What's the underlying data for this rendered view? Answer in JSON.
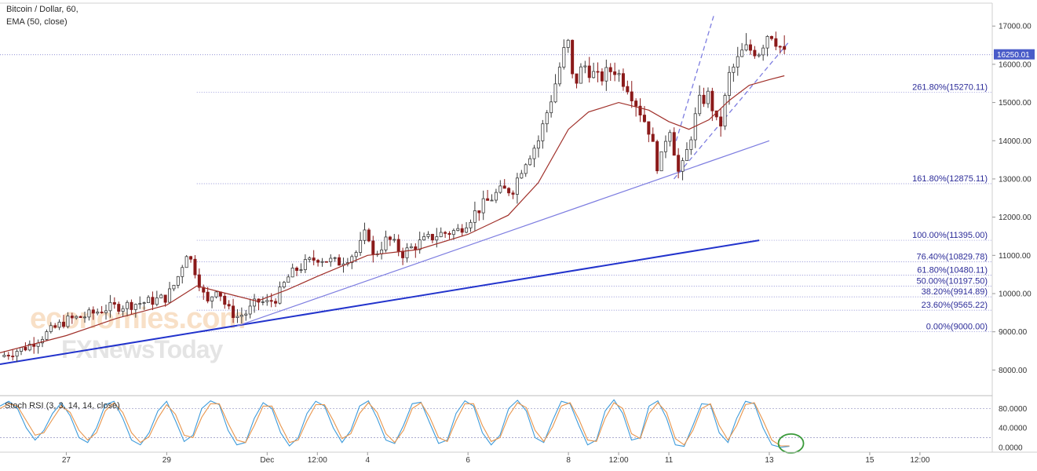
{
  "legend": {
    "symbol": "Bitcoin / Dollar, 60,",
    "ema": "EMA (50, close)",
    "stoch": "Stoch RSI (3, 3, 14, 14, close)"
  },
  "watermark": {
    "line1": "economies.com",
    "line2": "FXNewsToday"
  },
  "colors": {
    "up": "#3b3b3b",
    "down": "#8b1a1a",
    "ema": "#a0302a",
    "trend": "#2233cc",
    "trend_light": "#7d7de0",
    "stoch_k": "#3d9bdb",
    "stoch_d": "#e8954c",
    "fib": "#6e6ec8",
    "last_price_bg": "#4a5cc8",
    "circle": "#3a9a3a"
  },
  "chart_data": [
    {
      "type": "candlestick",
      "title": "Bitcoin / Dollar, 60,",
      "indicator": "EMA (50, close)",
      "price_axis": [
        "17000.00",
        "16000.00",
        "15000.00",
        "14000.00",
        "13000.00",
        "12000.00",
        "11000.00",
        "10000.00",
        "9000.00",
        "8000.00"
      ],
      "price_ticks": [
        17000,
        16000,
        15000,
        14000,
        13000,
        12000,
        11000,
        10000,
        9000,
        8000
      ],
      "ylim": [
        7350,
        17600
      ],
      "time_axis": [
        "27",
        "29",
        "Dec",
        "12:00",
        "4",
        "6",
        "8",
        "12:00",
        "11",
        "13",
        "15",
        "12:00"
      ],
      "time_positions": [
        0.0,
        1.0,
        2.0,
        2.5,
        3.0,
        4.0,
        5.0,
        5.5,
        6.0,
        7.0,
        8.0,
        8.5
      ],
      "xlim": [
        -0.66,
        9.22
      ],
      "last_price": "16250.01",
      "last_price_value": 16250.01,
      "close_path": [
        [
          -0.66,
          8350
        ],
        [
          -0.4,
          8600
        ],
        [
          -0.2,
          8950
        ],
        [
          0.0,
          9300
        ],
        [
          0.2,
          9420
        ],
        [
          0.4,
          9620
        ],
        [
          0.6,
          9700
        ],
        [
          0.8,
          9780
        ],
        [
          1.0,
          9900
        ],
        [
          1.1,
          10350
        ],
        [
          1.2,
          11100
        ],
        [
          1.3,
          10500
        ],
        [
          1.4,
          9700
        ],
        [
          1.5,
          10200
        ],
        [
          1.6,
          9600
        ],
        [
          1.7,
          9400
        ],
        [
          1.8,
          9500
        ],
        [
          1.9,
          9800
        ],
        [
          2.0,
          9750
        ],
        [
          2.1,
          9900
        ],
        [
          2.2,
          10400
        ],
        [
          2.3,
          10650
        ],
        [
          2.5,
          10950
        ],
        [
          2.7,
          10800
        ],
        [
          2.9,
          11100
        ],
        [
          3.0,
          11700
        ],
        [
          3.05,
          10950
        ],
        [
          3.2,
          11450
        ],
        [
          3.35,
          11050
        ],
        [
          3.5,
          11300
        ],
        [
          3.7,
          11550
        ],
        [
          3.9,
          11650
        ],
        [
          4.1,
          12200
        ],
        [
          4.3,
          12650
        ],
        [
          4.45,
          12750
        ],
        [
          4.55,
          13400
        ],
        [
          4.7,
          14000
        ],
        [
          4.85,
          15300
        ],
        [
          4.95,
          16300
        ],
        [
          5.0,
          16550
        ],
        [
          5.05,
          15400
        ],
        [
          5.15,
          16000
        ],
        [
          5.3,
          15600
        ],
        [
          5.45,
          15900
        ],
        [
          5.6,
          15400
        ],
        [
          5.8,
          14300
        ],
        [
          5.9,
          13200
        ],
        [
          6.0,
          14500
        ],
        [
          6.1,
          13100
        ],
        [
          6.15,
          13400
        ],
        [
          6.3,
          15000
        ],
        [
          6.4,
          15200
        ],
        [
          6.5,
          14200
        ],
        [
          6.6,
          15700
        ],
        [
          6.75,
          16400
        ],
        [
          6.9,
          16350
        ],
        [
          7.0,
          16900
        ],
        [
          7.1,
          16500
        ],
        [
          7.15,
          16250
        ]
      ],
      "ema_path": [
        [
          -0.66,
          8450
        ],
        [
          0.0,
          8900
        ],
        [
          0.5,
          9350
        ],
        [
          1.0,
          9700
        ],
        [
          1.3,
          10200
        ],
        [
          1.6,
          10000
        ],
        [
          1.9,
          9800
        ],
        [
          2.2,
          10100
        ],
        [
          2.5,
          10450
        ],
        [
          3.0,
          11000
        ],
        [
          3.5,
          11150
        ],
        [
          4.0,
          11550
        ],
        [
          4.4,
          12050
        ],
        [
          4.7,
          12900
        ],
        [
          5.0,
          14300
        ],
        [
          5.2,
          14750
        ],
        [
          5.5,
          15000
        ],
        [
          5.8,
          14800
        ],
        [
          6.0,
          14500
        ],
        [
          6.2,
          14300
        ],
        [
          6.4,
          14550
        ],
        [
          6.6,
          15050
        ],
        [
          6.8,
          15450
        ],
        [
          7.0,
          15600
        ],
        [
          7.15,
          15700
        ]
      ],
      "trend_lines": [
        {
          "from": [
            -0.66,
            8150
          ],
          "to": [
            6.9,
            11395
          ]
        },
        {
          "from": [
            1.7,
            9150
          ],
          "to": [
            7.0,
            14000
          ]
        }
      ],
      "channel": [
        {
          "from": [
            6.05,
            13800
          ],
          "to": [
            6.45,
            17300
          ]
        },
        {
          "from": [
            6.05,
            13000
          ],
          "to": [
            7.2,
            16600
          ]
        }
      ],
      "fibonacci": [
        {
          "label": "261.80%(15270.11)",
          "value": 15270.11
        },
        {
          "label": "161.80%(12875.11)",
          "value": 12875.11
        },
        {
          "label": "100.00%(11395.00)",
          "value": 11395.0
        },
        {
          "label": "76.40%(10829.78)",
          "value": 10829.78
        },
        {
          "label": "61.80%(10480.11)",
          "value": 10480.11
        },
        {
          "label": "50.00%(10197.50)",
          "value": 10197.5
        },
        {
          "label": "38.20%(9914.89)",
          "value": 9914.89
        },
        {
          "label": "23.60%(9565.22)",
          "value": 9565.22
        },
        {
          "label": "0.00%(9000.00)",
          "value": 9000.0
        }
      ],
      "grid": false
    },
    {
      "type": "line",
      "title": "Stoch RSI (3, 3, 14, 14, close)",
      "y_axis": [
        "80.0000",
        "40.0000",
        "0.0000"
      ],
      "y_ticks": [
        80,
        40,
        0
      ],
      "ylim": [
        -10,
        105
      ],
      "levels": [
        80,
        20
      ],
      "series": [
        {
          "key": "k",
          "values": [
            85,
            95,
            80,
            40,
            15,
            35,
            70,
            92,
            65,
            20,
            10,
            40,
            88,
            95,
            60,
            15,
            5,
            30,
            75,
            95,
            55,
            12,
            25,
            80,
            96,
            88,
            35,
            5,
            10,
            60,
            92,
            80,
            30,
            3,
            20,
            70,
            95,
            85,
            40,
            10,
            35,
            85,
            96,
            60,
            15,
            8,
            45,
            90,
            93,
            50,
            8,
            15,
            70,
            96,
            85,
            30,
            5,
            25,
            80,
            97,
            75,
            20,
            10,
            55,
            95,
            90,
            45,
            5,
            15,
            75,
            98,
            70,
            15,
            20,
            85,
            96,
            60,
            5,
            2,
            45,
            90,
            88,
            30,
            10,
            60,
            95,
            90,
            40,
            5,
            0,
            2
          ]
        },
        {
          "key": "d",
          "values": [
            80,
            90,
            85,
            55,
            25,
            30,
            58,
            85,
            72,
            35,
            15,
            30,
            75,
            92,
            72,
            30,
            10,
            22,
            60,
            88,
            68,
            25,
            20,
            62,
            90,
            90,
            50,
            15,
            10,
            45,
            85,
            85,
            45,
            10,
            15,
            55,
            88,
            88,
            55,
            18,
            28,
            70,
            92,
            72,
            28,
            10,
            35,
            80,
            92,
            62,
            20,
            12,
            55,
            90,
            90,
            45,
            12,
            20,
            65,
            92,
            82,
            35,
            12,
            42,
            85,
            92,
            58,
            15,
            12,
            60,
            92,
            80,
            28,
            18,
            70,
            92,
            72,
            18,
            5,
            35,
            80,
            90,
            45,
            15,
            45,
            88,
            92,
            55,
            15,
            3,
            3
          ]
        }
      ]
    }
  ]
}
